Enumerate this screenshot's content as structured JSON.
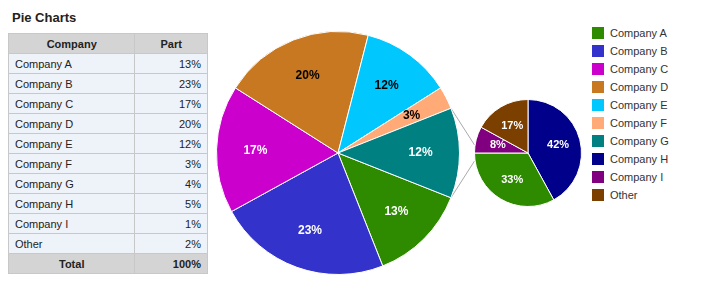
{
  "chart_data": [
    {
      "type": "table",
      "title": "Pie Charts",
      "columns": [
        "Company",
        "Part"
      ],
      "rows": [
        [
          "Company A",
          "13%"
        ],
        [
          "Company B",
          "23%"
        ],
        [
          "Company C",
          "17%"
        ],
        [
          "Company D",
          "20%"
        ],
        [
          "Company E",
          "12%"
        ],
        [
          "Company F",
          "3%"
        ],
        [
          "Company G",
          "4%"
        ],
        [
          "Company H",
          "5%"
        ],
        [
          "Company I",
          "1%"
        ],
        [
          "Other",
          "2%"
        ]
      ],
      "footer": [
        "Total",
        "100%"
      ]
    },
    {
      "type": "pie",
      "values": [
        13,
        23,
        17,
        20,
        12,
        3,
        12
      ],
      "value_labels": [
        "13%",
        "23%",
        "17%",
        "20%",
        "12%",
        "3%",
        "12%"
      ],
      "colors": [
        "#2e8b00",
        "#3333cc",
        "#cc00cc",
        "#c87820",
        "#00c8ff",
        "#ffaa77",
        "#008080"
      ],
      "data_labels": true
    },
    {
      "type": "pie",
      "values": [
        42,
        33,
        8,
        17
      ],
      "value_labels": [
        "42%",
        "33%",
        "8%",
        "17%"
      ],
      "colors": [
        "#00008b",
        "#2e8b00",
        "#800080",
        "#7b3f00"
      ],
      "data_labels": true,
      "connector_color": "#aaaaaa"
    },
    {
      "type": "legend",
      "series": [
        {
          "name": "Company A",
          "color": "#2e8b00"
        },
        {
          "name": "Company B",
          "color": "#3333cc"
        },
        {
          "name": "Company C",
          "color": "#cc00cc"
        },
        {
          "name": "Company D",
          "color": "#c87820"
        },
        {
          "name": "Company E",
          "color": "#00c8ff"
        },
        {
          "name": "Company F",
          "color": "#ffaa77"
        },
        {
          "name": "Company G",
          "color": "#008080"
        },
        {
          "name": "Company H",
          "color": "#00008b"
        },
        {
          "name": "Company I",
          "color": "#800080"
        },
        {
          "name": "Other",
          "color": "#7b3f00"
        }
      ]
    }
  ]
}
